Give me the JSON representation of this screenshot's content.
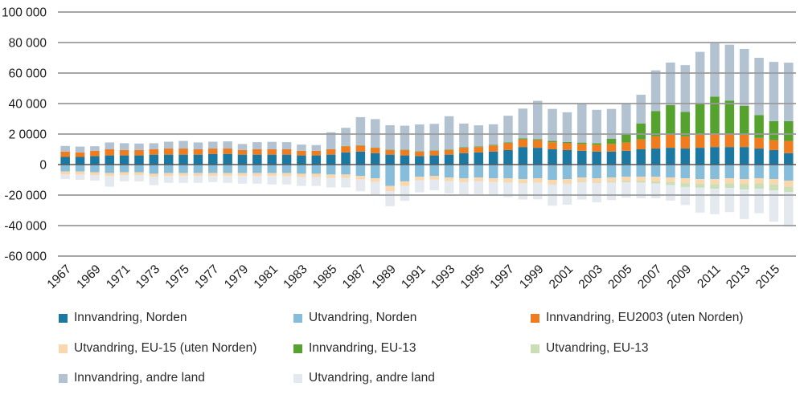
{
  "chart_data": {
    "type": "bar",
    "stacked": true,
    "title": "",
    "xlabel": "",
    "ylabel": "",
    "grid": true,
    "legend_position": "bottom",
    "background": "#ffffff",
    "colors": {
      "grid": "#9a9a9a",
      "zero_line": "#555555",
      "axis_text": "#1a1a1a"
    },
    "y_axis": {
      "min": -60000,
      "max": 100000,
      "ticks": [
        100000,
        80000,
        60000,
        40000,
        20000,
        0,
        -20000,
        -40000,
        -60000
      ],
      "tick_labels": [
        "100 000",
        "80 000",
        "60 000",
        "40 000",
        "2 0000",
        "0",
        "-20 000",
        "-40 000",
        "-60 000"
      ]
    },
    "years": [
      1967,
      1968,
      1969,
      1970,
      1971,
      1972,
      1973,
      1974,
      1975,
      1976,
      1977,
      1978,
      1979,
      1980,
      1981,
      1982,
      1983,
      1984,
      1985,
      1986,
      1987,
      1988,
      1989,
      1990,
      1991,
      1992,
      1993,
      1994,
      1995,
      1996,
      1997,
      1998,
      1999,
      2000,
      2001,
      2002,
      2003,
      2004,
      2005,
      2006,
      2007,
      2008,
      2009,
      2010,
      2011,
      2012,
      2013,
      2014,
      2015,
      2016
    ],
    "x_tick_labels": [
      "1967",
      "1969",
      "1971",
      "1973",
      "1975",
      "1977",
      "1979",
      "1981",
      "1983",
      "1985",
      "1987",
      "1989",
      "1991",
      "1993",
      "1995",
      "1997",
      "1999",
      "2001",
      "2003",
      "2005",
      "2007",
      "2009",
      "2011",
      "2013",
      "2015"
    ],
    "series": [
      {
        "key": "inn_norden",
        "name": "Innvandring, Norden",
        "color": "#1a78a2",
        "values": [
          5000,
          5000,
          5500,
          6000,
          6000,
          6000,
          6500,
          6500,
          6500,
          6500,
          7000,
          7000,
          6500,
          6500,
          6500,
          6500,
          6000,
          6000,
          6500,
          8000,
          8500,
          7500,
          6500,
          6000,
          5500,
          6000,
          6500,
          7500,
          8000,
          8500,
          9500,
          11500,
          11000,
          10000,
          9500,
          9000,
          8500,
          8500,
          9000,
          10000,
          10500,
          11000,
          10500,
          11000,
          11500,
          11500,
          11500,
          10500,
          9500,
          7500
        ]
      },
      {
        "key": "inn_eu2003",
        "name": "Innvandring, EU2003 (uten Norden)",
        "color": "#ef7d1f",
        "values": [
          3500,
          3000,
          3500,
          4000,
          3500,
          3500,
          3500,
          4000,
          4000,
          3500,
          3500,
          3500,
          3000,
          3500,
          3500,
          3500,
          3000,
          3000,
          3500,
          4000,
          4000,
          3500,
          3000,
          3500,
          3000,
          3000,
          3000,
          3500,
          3500,
          4000,
          4500,
          5000,
          5000,
          4700,
          4500,
          4500,
          4500,
          5000,
          5500,
          6500,
          8000,
          8500,
          8000,
          8500,
          9000,
          8500,
          8000,
          7000,
          6500,
          8000
        ]
      },
      {
        "key": "inn_eu13",
        "name": "Innvandring, EU-13",
        "color": "#55a22e",
        "values": [
          0,
          0,
          0,
          0,
          0,
          0,
          0,
          0,
          0,
          0,
          0,
          0,
          0,
          0,
          0,
          0,
          0,
          0,
          0,
          200,
          200,
          200,
          200,
          200,
          200,
          300,
          300,
          300,
          400,
          400,
          500,
          600,
          700,
          800,
          800,
          900,
          1000,
          3500,
          5500,
          10500,
          16500,
          19500,
          16000,
          20500,
          24000,
          22000,
          19000,
          15000,
          12500,
          13000
        ]
      },
      {
        "key": "inn_andre",
        "name": "Innvandring, andre land",
        "color": "#b2c2d1",
        "values": [
          3700,
          3800,
          3000,
          4500,
          4500,
          4300,
          4000,
          4500,
          5000,
          4500,
          4500,
          4700,
          4000,
          4700,
          4900,
          4700,
          4100,
          3800,
          11200,
          11900,
          18400,
          18600,
          16100,
          15800,
          17600,
          17400,
          21900,
          15600,
          13800,
          13500,
          17500,
          19600,
          25100,
          21000,
          19500,
          25700,
          21900,
          19500,
          20100,
          18800,
          26800,
          27900,
          30700,
          33900,
          35000,
          36600,
          37300,
          37500,
          38800,
          38300
        ]
      },
      {
        "key": "ut_norden",
        "name": "Utvandring, Norden",
        "color": "#85bdda",
        "values": [
          -4500,
          -4500,
          -5000,
          -5500,
          -5000,
          -5000,
          -6000,
          -5500,
          -5500,
          -5500,
          -5500,
          -5500,
          -5500,
          -5500,
          -5500,
          -5500,
          -6000,
          -6000,
          -6500,
          -6500,
          -7500,
          -9000,
          -14000,
          -11000,
          -8000,
          -7500,
          -8500,
          -9000,
          -8500,
          -9000,
          -9000,
          -9500,
          -9000,
          -10000,
          -9500,
          -8500,
          -9000,
          -8500,
          -8000,
          -8000,
          -8000,
          -8500,
          -9000,
          -9500,
          -9500,
          -9000,
          -9500,
          -9000,
          -9500,
          -10500
        ]
      },
      {
        "key": "ut_eu15",
        "name": "Utvandring, EU-15 (uten Norden)",
        "color": "#fad7ad",
        "values": [
          -2000,
          -2000,
          -2000,
          -2000,
          -2000,
          -2000,
          -2000,
          -2000,
          -2000,
          -2000,
          -2000,
          -2000,
          -2000,
          -2000,
          -2000,
          -2200,
          -2200,
          -2200,
          -2200,
          -2200,
          -2300,
          -2300,
          -3500,
          -3000,
          -2400,
          -2400,
          -2400,
          -2500,
          -2500,
          -2500,
          -2600,
          -2800,
          -2800,
          -3000,
          -3000,
          -2800,
          -2800,
          -2800,
          -2800,
          -2800,
          -3000,
          -3000,
          -3200,
          -3200,
          -3300,
          -3300,
          -3400,
          -3400,
          -3500,
          -4000
        ]
      },
      {
        "key": "ut_eu13",
        "name": "Utvandring, EU-13",
        "color": "#cadfb6",
        "values": [
          0,
          0,
          0,
          0,
          0,
          0,
          0,
          0,
          0,
          0,
          0,
          0,
          0,
          0,
          0,
          0,
          0,
          0,
          0,
          0,
          0,
          0,
          0,
          0,
          0,
          0,
          0,
          0,
          0,
          0,
          -200,
          -200,
          -200,
          -300,
          -300,
          -300,
          -300,
          -500,
          -800,
          -1000,
          -1500,
          -2000,
          -2500,
          -2500,
          -3000,
          -3000,
          -3500,
          -3500,
          -4000,
          -3500
        ]
      },
      {
        "key": "ut_andre",
        "name": "Utvandring, andre land",
        "color": "#e3e9ef",
        "values": [
          -3000,
          -3500,
          -3500,
          -7000,
          -4000,
          -4000,
          -5500,
          -4500,
          -4500,
          -4500,
          -4000,
          -4500,
          -5000,
          -5000,
          -5500,
          -5300,
          -5800,
          -5800,
          -6300,
          -6300,
          -7700,
          -8500,
          -9800,
          -9800,
          -7800,
          -6900,
          -8000,
          -8000,
          -8300,
          -9100,
          -9500,
          -10400,
          -10800,
          -13600,
          -13500,
          -11300,
          -12600,
          -11500,
          -10100,
          -10300,
          -9600,
          -10100,
          -11800,
          -16300,
          -16700,
          -15900,
          -19300,
          -16000,
          -20500,
          -22700
        ]
      }
    ],
    "legend_order": [
      0,
      4,
      1,
      5,
      2,
      6,
      3,
      7
    ]
  }
}
